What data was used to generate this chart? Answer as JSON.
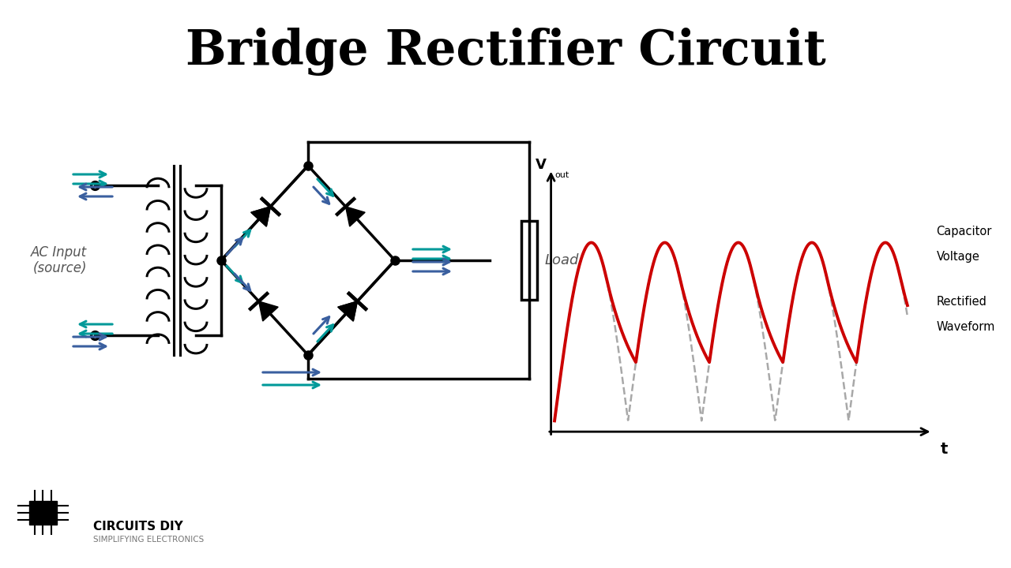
{
  "title": "Bridge Rectifier Circuit",
  "title_fontsize": 44,
  "title_fontweight": "bold",
  "bg_color": "#ffffff",
  "cc": "#000000",
  "teal": "#009999",
  "blue": "#3a5f9f",
  "red": "#cc0000",
  "gray": "#999999",
  "logo1": "CIRCUITS DIY",
  "logo2": "SIMPLIFYING ELECTRONICS",
  "ac_label": "AC Input\n(source)",
  "load_label": "Load",
  "cap_label1": "Capacitor",
  "cap_label2": "Voltage",
  "rect_label1": "Rectified",
  "rect_label2": "Waveform",
  "t_label": "t",
  "fig_w": 12.8,
  "fig_h": 7.2
}
